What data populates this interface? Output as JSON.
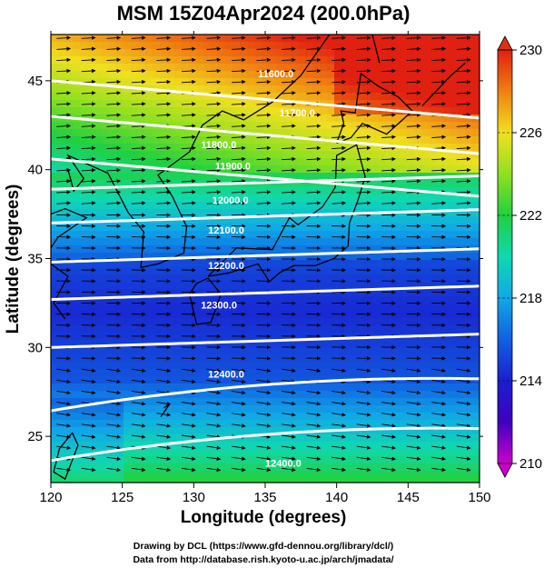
{
  "title": "MSM 15Z04Apr2024 (200.0hPa)",
  "axes": {
    "xlabel": "Longitude (degrees)",
    "ylabel": "Latitude  (degrees)",
    "xlim": [
      120,
      150
    ],
    "ylim": [
      22.4,
      47.6
    ],
    "xticks": [
      "120",
      "125",
      "130",
      "135",
      "140",
      "145",
      "150"
    ],
    "yticks": [
      "25",
      "30",
      "35",
      "40",
      "45"
    ]
  },
  "colorbar": {
    "min": 210,
    "max": 230,
    "labels": [
      "230",
      "226",
      "222",
      "218",
      "214",
      "210"
    ]
  },
  "contours": {
    "labels": [
      "11600.0",
      "11700.0",
      "11800.0",
      "11900.0",
      "12000.0",
      "12100.0",
      "12200.0",
      "12300.0",
      "12400.0"
    ]
  },
  "credits": {
    "line1": "Drawing by DCL (https://www.gfd-dennou.org/library/dcl/)",
    "line2": "Data from http://database.rish.kyoto-u.ac.jp/arch/jmadata/"
  },
  "colors": {
    "cold": "#1a1fd0",
    "warm": "#e03010",
    "contour": "#ffffff",
    "vectors": "#000000"
  }
}
